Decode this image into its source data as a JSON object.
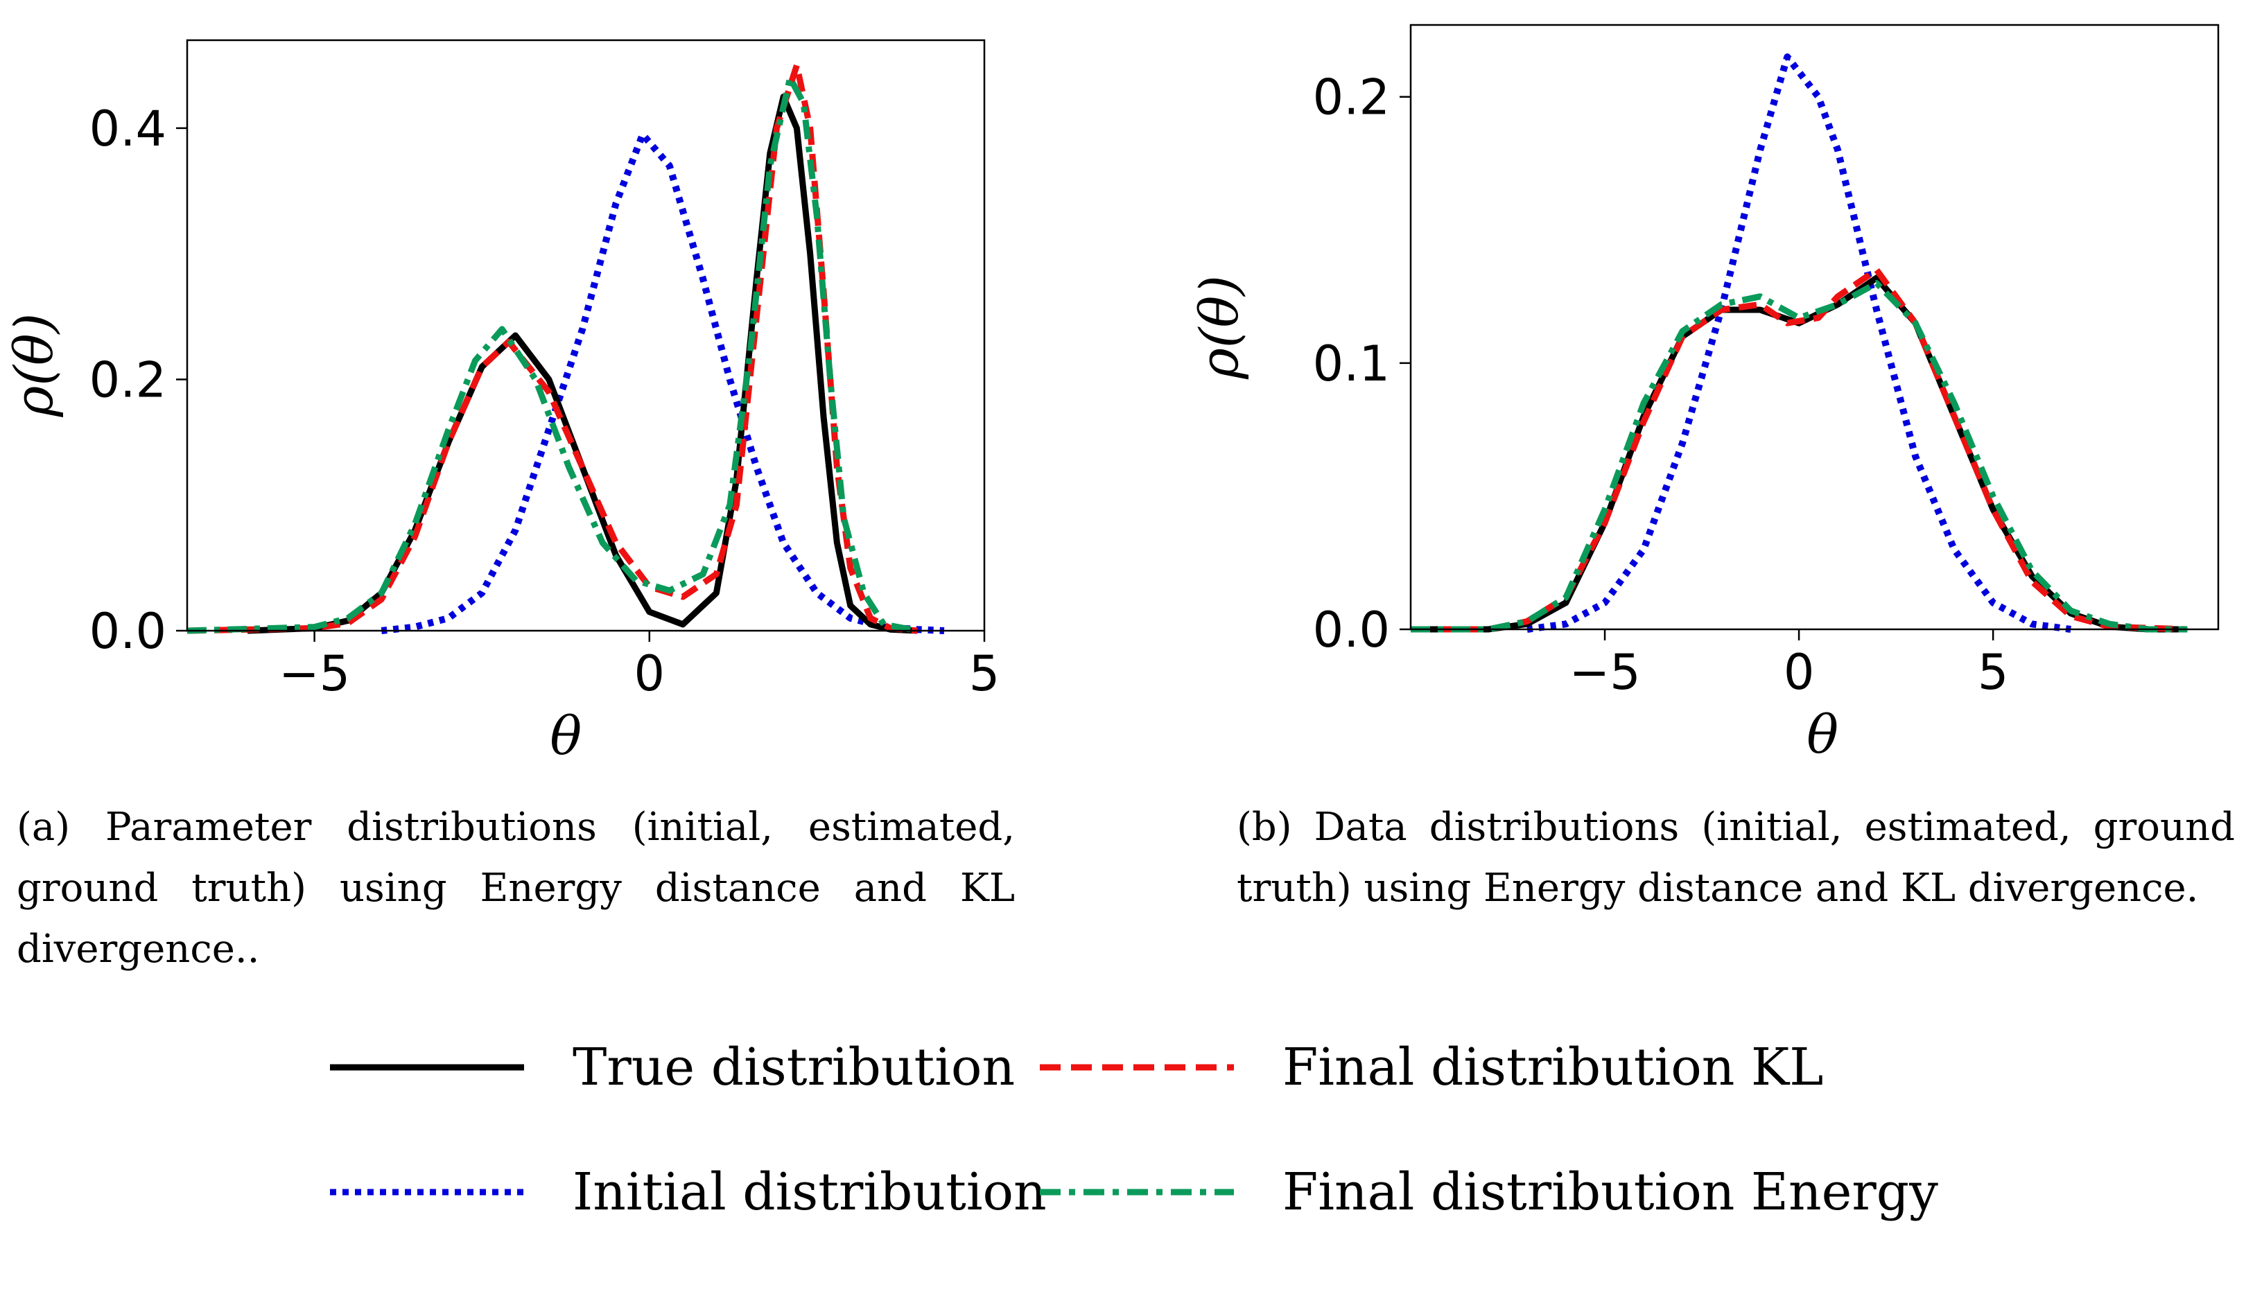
{
  "colors": {
    "true": "#000000",
    "initial": "#0000dd",
    "kl": "#ee1111",
    "energy": "#0a9a5a"
  },
  "chart_data": [
    {
      "type": "line",
      "xlabel": "θ",
      "ylabel": "ρ(θ)",
      "xlim": [
        -6.9,
        5.0
      ],
      "ylim": [
        0.0,
        0.47
      ],
      "xticks": [
        -5,
        0,
        5
      ],
      "yticks": [
        0.0,
        0.2,
        0.4
      ],
      "xtick_labels": [
        "−5",
        "0",
        "5"
      ],
      "ytick_labels": [
        "0.0",
        "0.2",
        "0.4"
      ],
      "grid": false,
      "series": [
        {
          "name": "True distribution",
          "style": "solid",
          "color_key": "true",
          "x": [
            -6.0,
            -5.0,
            -4.5,
            -4.0,
            -3.5,
            -3.0,
            -2.5,
            -2.0,
            -1.5,
            -1.0,
            -0.5,
            0.0,
            0.5,
            1.0,
            1.3,
            1.6,
            1.8,
            2.0,
            2.2,
            2.4,
            2.6,
            2.8,
            3.0,
            3.3,
            3.6,
            4.0
          ],
          "y": [
            0.0,
            0.002,
            0.008,
            0.03,
            0.08,
            0.15,
            0.21,
            0.235,
            0.2,
            0.13,
            0.06,
            0.015,
            0.005,
            0.03,
            0.12,
            0.28,
            0.38,
            0.425,
            0.4,
            0.3,
            0.17,
            0.07,
            0.02,
            0.005,
            0.001,
            0.0
          ]
        },
        {
          "name": "Initial distribution",
          "style": "dotted",
          "color_key": "initial",
          "x": [
            -4.0,
            -3.5,
            -3.0,
            -2.5,
            -2.0,
            -1.5,
            -1.0,
            -0.5,
            -0.1,
            0.3,
            0.8,
            1.2,
            1.6,
            2.0,
            2.5,
            3.0,
            3.5,
            4.0,
            4.4
          ],
          "y": [
            0.0,
            0.003,
            0.01,
            0.03,
            0.08,
            0.16,
            0.24,
            0.34,
            0.395,
            0.37,
            0.28,
            0.2,
            0.13,
            0.07,
            0.03,
            0.01,
            0.003,
            0.001,
            0.0
          ]
        },
        {
          "name": "Final distribution KL",
          "style": "dashed",
          "color_key": "kl",
          "x": [
            -6.9,
            -5.0,
            -4.5,
            -4.0,
            -3.5,
            -3.0,
            -2.5,
            -2.1,
            -1.5,
            -1.0,
            -0.5,
            0.0,
            0.5,
            1.0,
            1.3,
            1.6,
            1.9,
            2.2,
            2.4,
            2.6,
            2.8,
            3.0,
            3.3,
            3.6,
            4.0
          ],
          "y": [
            0.0,
            0.002,
            0.006,
            0.025,
            0.075,
            0.15,
            0.21,
            0.23,
            0.19,
            0.13,
            0.07,
            0.035,
            0.027,
            0.045,
            0.1,
            0.25,
            0.4,
            0.45,
            0.4,
            0.27,
            0.13,
            0.05,
            0.01,
            0.002,
            0.0
          ]
        },
        {
          "name": "Final distribution Energy",
          "style": "dashdot",
          "color_key": "energy",
          "x": [
            -6.9,
            -5.0,
            -4.5,
            -4.0,
            -3.5,
            -3.0,
            -2.6,
            -2.2,
            -1.7,
            -1.2,
            -0.7,
            -0.2,
            0.3,
            0.8,
            1.2,
            1.5,
            1.8,
            2.1,
            2.3,
            2.5,
            2.7,
            2.9,
            3.2,
            3.5,
            4.0
          ],
          "y": [
            0.0,
            0.003,
            0.01,
            0.03,
            0.085,
            0.16,
            0.215,
            0.24,
            0.2,
            0.13,
            0.07,
            0.04,
            0.032,
            0.045,
            0.1,
            0.22,
            0.37,
            0.44,
            0.42,
            0.33,
            0.2,
            0.09,
            0.03,
            0.005,
            0.0
          ]
        }
      ]
    },
    {
      "type": "line",
      "xlabel": "θ",
      "ylabel": "ρ(θ)",
      "xlim": [
        -10.0,
        10.8
      ],
      "ylim": [
        0.0,
        0.227
      ],
      "xticks": [
        -5,
        0,
        5
      ],
      "yticks": [
        0.0,
        0.1,
        0.2
      ],
      "xtick_labels": [
        "−5",
        "0",
        "5"
      ],
      "ytick_labels": [
        "0.0",
        "0.1",
        "0.2"
      ],
      "grid": false,
      "series": [
        {
          "name": "True distribution",
          "style": "solid",
          "color_key": "true",
          "x": [
            -10.0,
            -8.0,
            -7.0,
            -6.0,
            -5.0,
            -4.0,
            -3.0,
            -2.0,
            -1.0,
            0.0,
            1.0,
            2.0,
            3.0,
            4.0,
            5.0,
            6.0,
            7.0,
            8.0,
            9.0,
            10.0
          ],
          "y": [
            0.0,
            0.0,
            0.002,
            0.01,
            0.04,
            0.08,
            0.11,
            0.12,
            0.12,
            0.115,
            0.122,
            0.132,
            0.115,
            0.08,
            0.045,
            0.02,
            0.006,
            0.001,
            0.0,
            0.0
          ]
        },
        {
          "name": "Initial distribution",
          "style": "dotted",
          "color_key": "initial",
          "x": [
            -7.0,
            -6.0,
            -5.0,
            -4.0,
            -3.0,
            -2.0,
            -1.0,
            -0.3,
            0.5,
            1.0,
            2.0,
            3.0,
            4.0,
            5.0,
            6.0,
            7.0
          ],
          "y": [
            0.0,
            0.002,
            0.01,
            0.03,
            0.07,
            0.12,
            0.18,
            0.215,
            0.2,
            0.18,
            0.12,
            0.065,
            0.03,
            0.01,
            0.002,
            0.0
          ]
        },
        {
          "name": "Final distribution KL",
          "style": "dashed",
          "color_key": "kl",
          "x": [
            -10.0,
            -8.0,
            -7.0,
            -6.0,
            -5.0,
            -4.0,
            -3.0,
            -2.0,
            -1.0,
            -0.3,
            0.5,
            1.0,
            2.0,
            3.0,
            4.0,
            5.0,
            6.0,
            7.0,
            8.0,
            10.0
          ],
          "y": [
            0.0,
            0.0,
            0.003,
            0.012,
            0.04,
            0.078,
            0.11,
            0.12,
            0.122,
            0.115,
            0.117,
            0.125,
            0.135,
            0.115,
            0.08,
            0.045,
            0.018,
            0.005,
            0.001,
            0.0
          ]
        },
        {
          "name": "Final distribution Energy",
          "style": "dashdot",
          "color_key": "energy",
          "x": [
            -10.0,
            -8.0,
            -7.0,
            -6.0,
            -5.0,
            -4.0,
            -3.0,
            -2.0,
            -1.0,
            0.0,
            1.0,
            2.0,
            3.0,
            4.0,
            5.0,
            6.0,
            7.0,
            8.0,
            9.0,
            10.0
          ],
          "y": [
            0.0,
            0.0,
            0.003,
            0.012,
            0.045,
            0.085,
            0.112,
            0.122,
            0.125,
            0.117,
            0.122,
            0.13,
            0.115,
            0.085,
            0.05,
            0.022,
            0.007,
            0.002,
            0.0,
            0.0
          ]
        }
      ]
    }
  ],
  "captions": {
    "a": "(a) Parameter distributions (initial, estimated, ground truth) using Energy distance and KL divergence..",
    "b": "(b) Data distributions (initial, estimated, ground truth) using Energy distance and KL divergence."
  },
  "legend": {
    "true_label": "True distribution",
    "initial_label": "Initial distribution",
    "kl_label": "Final distribution KL",
    "energy_label": "Final distribution Energy"
  }
}
